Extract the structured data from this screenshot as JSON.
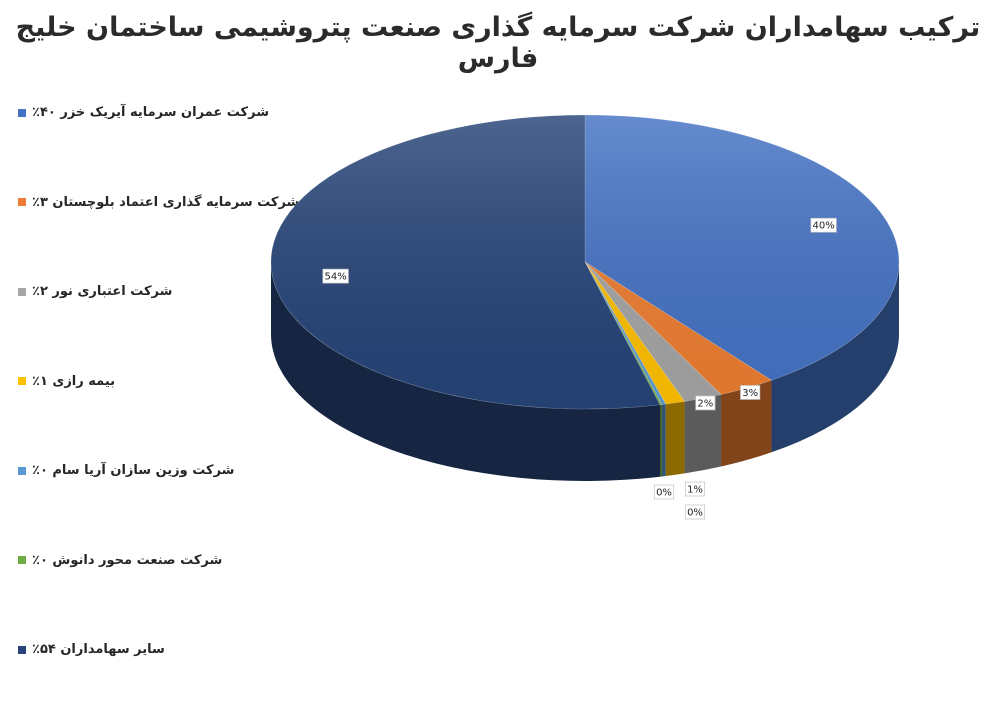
{
  "chart_data": {
    "type": "pie",
    "title": "ترکیب سهامداران شرکت سرمایه گذاری صنعت پتروشیمی ساختمان خلیج فارس",
    "categories": [
      "شرکت عمران سرمایه آیریک خزر ۴۰٪",
      "شرکت سرمایه گذاری اعتماد بلوچستان ۳٪",
      "شرکت اعتباری نور ۲٪",
      "بیمه رازی ۱٪",
      "شرکت وزین سازان آریا سام ۰٪",
      "شرکت صنعت محور دانوش ۰٪",
      "سایر سهامداران ۵۴٪"
    ],
    "values": [
      40,
      3,
      2,
      1,
      0.2,
      0.1,
      54
    ],
    "data_labels": [
      "40%",
      "3%",
      "2%",
      "1%",
      "0%",
      "0%",
      "54%"
    ],
    "colors": [
      "#4472C4",
      "#ED7D31",
      "#A5A5A5",
      "#FFC000",
      "#5B9BD5",
      "#70AD47",
      "#264478"
    ],
    "legend_position": "left",
    "style": "3d"
  }
}
